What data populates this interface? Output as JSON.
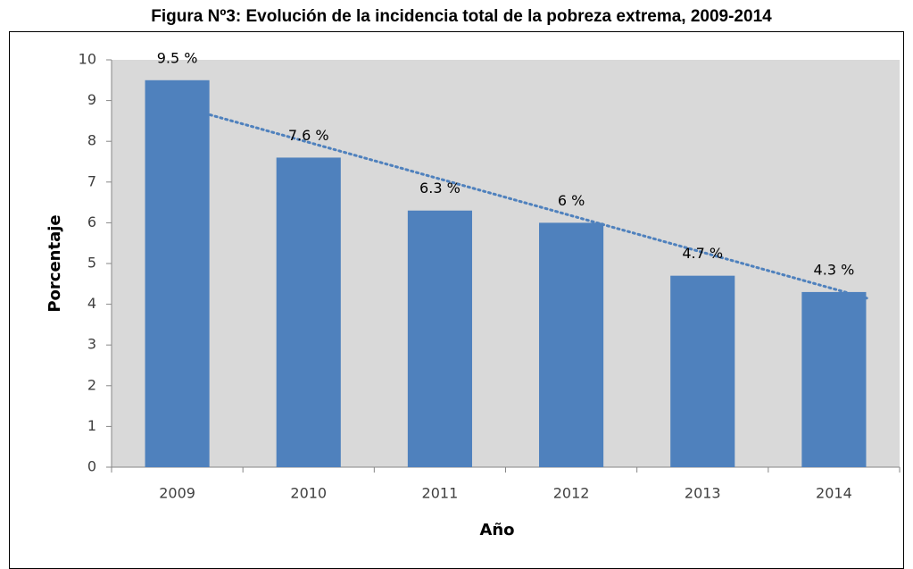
{
  "chart_data": {
    "type": "bar",
    "title": "Figura Nº3: Evolución de la incidencia total de la pobreza extrema, 2009-2014",
    "x_label": "Año",
    "y_label": "Porcentaje",
    "categories": [
      "2009",
      "2010",
      "2011",
      "2012",
      "2013",
      "2014"
    ],
    "values": [
      9.5,
      7.6,
      6.3,
      6,
      4.7,
      4.3
    ],
    "value_labels": [
      "9.5 %",
      "7.6 %",
      "6.3 %",
      "6 %",
      "4.7 %",
      "4.3 %"
    ],
    "color": "#4f81bd",
    "trendline": "linear",
    "trendline_color": "#4f81bd",
    "ylim": [
      0,
      10
    ],
    "yticks": [
      0,
      1,
      2,
      3,
      4,
      5,
      6,
      7,
      8,
      9,
      10
    ],
    "grid": false,
    "plot_background": "#d9d9d9"
  }
}
